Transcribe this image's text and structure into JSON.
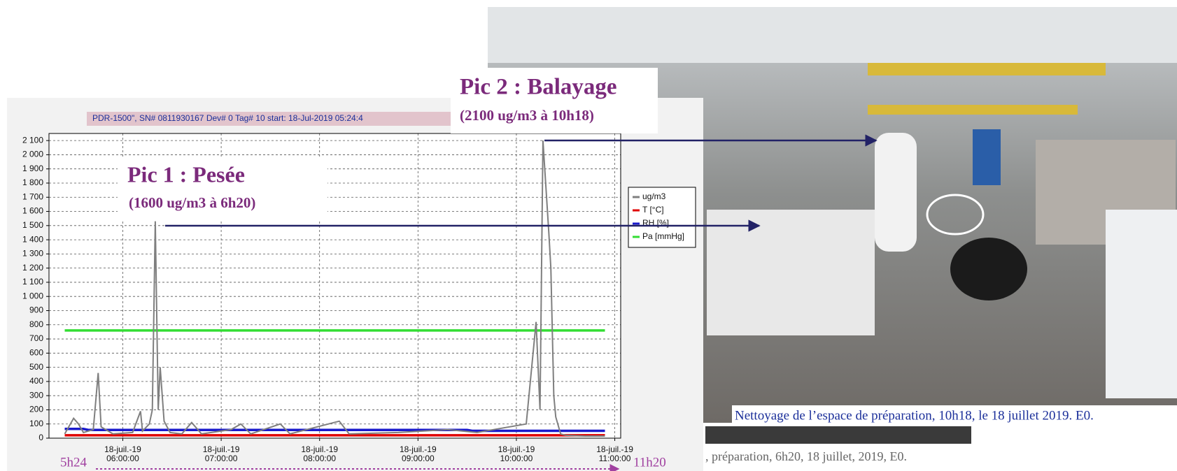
{
  "chart_data": {
    "type": "line",
    "title": "PDR-1500\", SN# 0811930167 Dev# 0 Tag# 10 start: 18-Jul-2019 05:24:4",
    "xlim": [
      5.25,
      11.06
    ],
    "ylim": [
      0,
      2150
    ],
    "grid": true,
    "legend": "right",
    "xticks": [
      {
        "value": 6,
        "label": "18-juil.-19\n06:00:00"
      },
      {
        "value": 7,
        "label": "18-juil.-19\n07:00:00"
      },
      {
        "value": 8,
        "label": "18-juil.-19\n08:00:00"
      },
      {
        "value": 9,
        "label": "18-juil.-19\n09:00:00"
      },
      {
        "value": 10,
        "label": "18-juil.-19\n10:00:00"
      },
      {
        "value": 11,
        "label": "18-juil.-19\n11:00:00"
      }
    ],
    "yticks": [
      0,
      100,
      200,
      300,
      400,
      500,
      600,
      700,
      800,
      900,
      {
        "value": 1000,
        "label": "1 000"
      },
      {
        "value": 1100,
        "label": "1 100"
      },
      {
        "value": 1200,
        "label": "1 200"
      },
      {
        "value": 1300,
        "label": "1 300"
      },
      {
        "value": 1400,
        "label": "1 400"
      },
      {
        "value": 1500,
        "label": "1 500"
      },
      {
        "value": 1600,
        "label": "1 600"
      },
      {
        "value": 1700,
        "label": "1 700"
      },
      {
        "value": 1800,
        "label": "1 800"
      },
      {
        "value": 1900,
        "label": "1 900"
      },
      {
        "value": 2000,
        "label": "2 000"
      },
      {
        "value": 2100,
        "label": "2 100"
      }
    ],
    "series": [
      {
        "name": "ug/m3",
        "color": "#7f7f7f",
        "x": [
          5.41,
          5.5,
          5.55,
          5.6,
          5.7,
          5.75,
          5.78,
          5.9,
          6.1,
          6.18,
          6.2,
          6.27,
          6.3,
          6.33,
          6.36,
          6.38,
          6.42,
          6.48,
          6.6,
          6.7,
          6.8,
          7.1,
          7.2,
          7.3,
          7.6,
          7.7,
          8.2,
          8.3,
          8.8,
          9.3,
          9.6,
          10.1,
          10.2,
          10.24,
          10.27,
          10.33,
          10.35,
          10.38,
          10.4,
          10.45,
          10.5,
          10.7,
          10.9
        ],
        "values": [
          30,
          140,
          100,
          40,
          60,
          460,
          80,
          30,
          40,
          190,
          50,
          100,
          200,
          1530,
          200,
          500,
          120,
          40,
          30,
          110,
          30,
          60,
          100,
          30,
          100,
          30,
          120,
          30,
          40,
          60,
          40,
          100,
          820,
          200,
          2100,
          1450,
          1200,
          300,
          150,
          30,
          20,
          15,
          15
        ]
      },
      {
        "name": "T [°C]",
        "color": "#e00000",
        "x": [
          5.41,
          10.9
        ],
        "values": [
          20,
          20
        ]
      },
      {
        "name": "RH [%]",
        "color": "#1a1acc",
        "x": [
          5.41,
          5.6,
          5.65,
          9.5,
          9.55,
          10.9
        ],
        "values": [
          65,
          65,
          58,
          58,
          52,
          52
        ]
      },
      {
        "name": "Pa [mmHg]",
        "color": "#33dd33",
        "x": [
          5.41,
          10.9
        ],
        "values": [
          760,
          760
        ]
      }
    ],
    "annotations": {
      "pic1_title": "Pic 1 : Pesée",
      "pic1_detail": "(1600 ug/m3 à 6h20)",
      "pic2_title": "Pic 2 : Balayage",
      "pic2_detail": "(2100 ug/m3 à 10h18)",
      "start": "5h24",
      "end": "11h20",
      "photo_caption": "Nettoyage de l’espace de préparation, 10h18, le 18 juillet 2019. E0.",
      "photo_caption_2": ", préparation, 6h20, 18 juillet, 2019, E0."
    }
  }
}
